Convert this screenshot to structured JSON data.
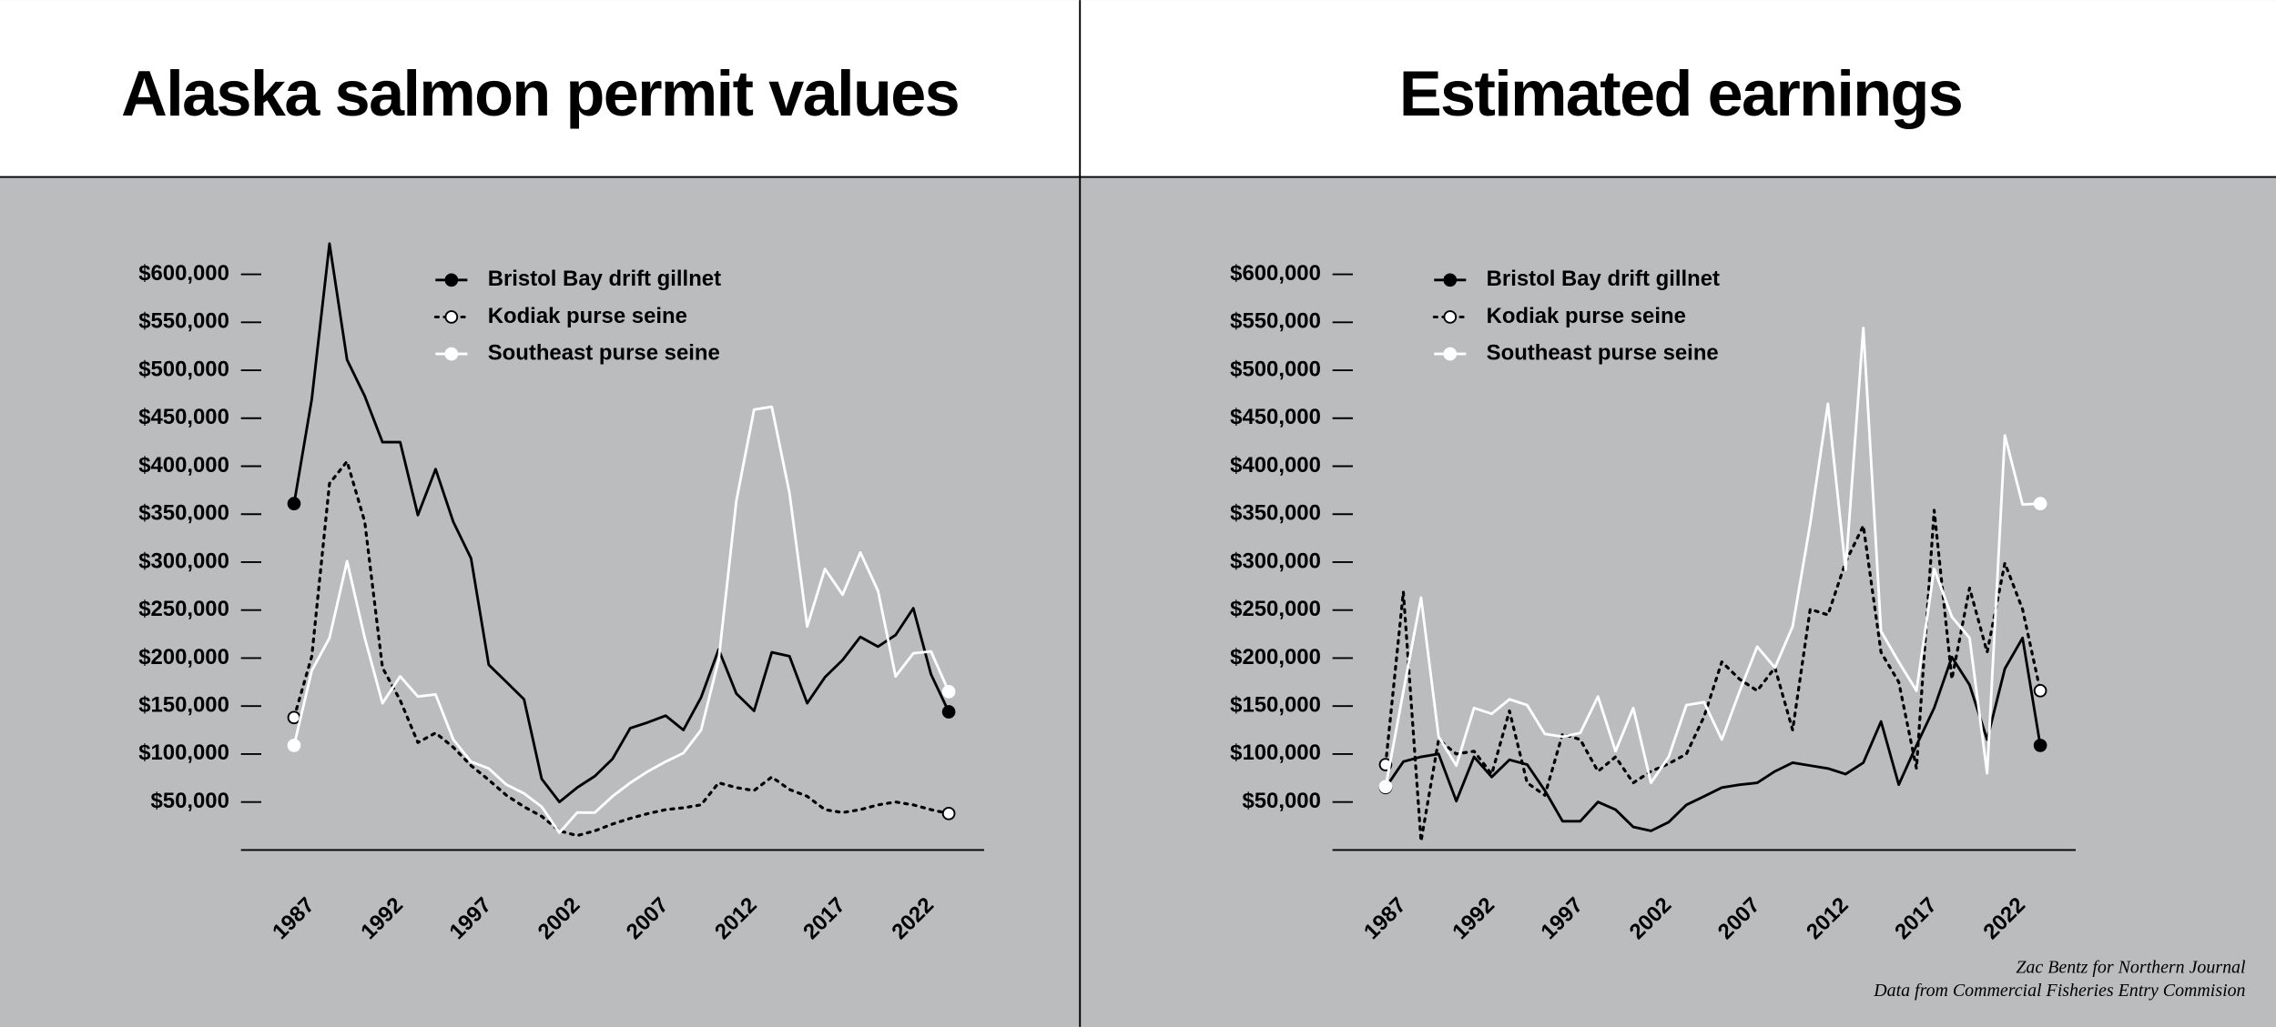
{
  "chart_data": [
    {
      "type": "line",
      "title": "Alaska salmon permit values",
      "x": [
        1987,
        1988,
        1989,
        1990,
        1991,
        1992,
        1993,
        1994,
        1995,
        1996,
        1997,
        1998,
        1999,
        2000,
        2001,
        2002,
        2003,
        2004,
        2005,
        2006,
        2007,
        2008,
        2009,
        2010,
        2011,
        2012,
        2013,
        2014,
        2015,
        2016,
        2017,
        2018,
        2019,
        2020,
        2021,
        2022,
        2023,
        2024
      ],
      "xlim": [
        1984,
        2026
      ],
      "xticks": [
        1987,
        1992,
        1997,
        2002,
        2007,
        2012,
        2017,
        2022
      ],
      "ylim": [
        0,
        650000
      ],
      "yticks": [
        {
          "value": 50000,
          "label": "$50,000"
        },
        {
          "value": 100000,
          "label": "$100,000"
        },
        {
          "value": 150000,
          "label": "$150,000"
        },
        {
          "value": 200000,
          "label": "$200,000"
        },
        {
          "value": 250000,
          "label": "$250,000"
        },
        {
          "value": 300000,
          "label": "$300,000"
        },
        {
          "value": 350000,
          "label": "$350,000"
        },
        {
          "value": 400000,
          "label": "$400,000"
        },
        {
          "value": 450000,
          "label": "$450,000"
        },
        {
          "value": 500000,
          "label": "$500,000"
        },
        {
          "value": 550000,
          "label": "$550,000"
        },
        {
          "value": 600000,
          "label": "$600,000"
        }
      ],
      "legend": "top-left",
      "series": [
        {
          "name": "Bristol Bay drift gillnet",
          "color": "#000000",
          "line_style": "solid",
          "marker_fill": "#000000",
          "values": [
            361000,
            470000,
            632000,
            511000,
            473000,
            425000,
            425000,
            349000,
            397000,
            342000,
            304000,
            193000,
            175000,
            157000,
            74000,
            50000,
            65000,
            77000,
            95000,
            127000,
            133000,
            140000,
            125000,
            159000,
            209000,
            163000,
            145000,
            206000,
            202000,
            153000,
            180000,
            198000,
            222000,
            212000,
            224000,
            252000,
            183000,
            144000
          ]
        },
        {
          "name": "Kodiak purse seine",
          "color": "#000000",
          "line_style": "dotted",
          "marker_fill": "#ffffff",
          "values": [
            138000,
            202000,
            382000,
            405000,
            342000,
            190000,
            156000,
            112000,
            122000,
            107000,
            88000,
            73000,
            57000,
            45000,
            35000,
            20000,
            15000,
            20000,
            27000,
            33000,
            38000,
            42000,
            44000,
            47000,
            70000,
            65000,
            62000,
            76000,
            63000,
            56000,
            42000,
            39000,
            42000,
            47000,
            50000,
            47000,
            42000,
            38000
          ]
        },
        {
          "name": "Southeast purse seine",
          "color": "#ffffff",
          "line_style": "solid",
          "marker_fill": "#ffffff",
          "values": [
            109000,
            187000,
            221000,
            301000,
            221000,
            153000,
            181000,
            160000,
            162000,
            115000,
            92000,
            85000,
            68000,
            59000,
            45000,
            18000,
            39000,
            39000,
            56000,
            70000,
            82000,
            92000,
            101000,
            125000,
            198000,
            364000,
            459000,
            462000,
            372000,
            233000,
            293000,
            266000,
            310000,
            270000,
            181000,
            205000,
            207000,
            165000
          ]
        }
      ]
    },
    {
      "type": "line",
      "title": "Estimated earnings",
      "x": [
        1987,
        1988,
        1989,
        1990,
        1991,
        1992,
        1993,
        1994,
        1995,
        1996,
        1997,
        1998,
        1999,
        2000,
        2001,
        2002,
        2003,
        2004,
        2005,
        2006,
        2007,
        2008,
        2009,
        2010,
        2011,
        2012,
        2013,
        2014,
        2015,
        2016,
        2017,
        2018,
        2019,
        2020,
        2021,
        2022,
        2023,
        2024
      ],
      "xlim": [
        1984,
        2026
      ],
      "xticks": [
        1987,
        1992,
        1997,
        2002,
        2007,
        2012,
        2017,
        2022
      ],
      "ylim": [
        0,
        650000
      ],
      "yticks": [
        {
          "value": 50000,
          "label": "$50,000"
        },
        {
          "value": 100000,
          "label": "$100,000"
        },
        {
          "value": 150000,
          "label": "$150,000"
        },
        {
          "value": 200000,
          "label": "$200,000"
        },
        {
          "value": 250000,
          "label": "$250,000"
        },
        {
          "value": 300000,
          "label": "$300,000"
        },
        {
          "value": 350000,
          "label": "$350,000"
        },
        {
          "value": 400000,
          "label": "$400,000"
        },
        {
          "value": 450000,
          "label": "$450,000"
        },
        {
          "value": 500000,
          "label": "$500,000"
        },
        {
          "value": 550000,
          "label": "$550,000"
        },
        {
          "value": 600000,
          "label": "$600,000"
        }
      ],
      "legend": "top-left",
      "series": [
        {
          "name": "Bristol Bay drift gillnet",
          "color": "#000000",
          "line_style": "solid",
          "marker_fill": "#000000",
          "values": [
            65000,
            92000,
            97000,
            100000,
            51000,
            97000,
            76000,
            94000,
            89000,
            62000,
            30000,
            30000,
            50000,
            42000,
            24000,
            20000,
            29000,
            47000,
            56000,
            65000,
            68000,
            70000,
            82000,
            91000,
            88000,
            85000,
            79000,
            91000,
            134000,
            68000,
            109000,
            148000,
            201000,
            172000,
            115000,
            189000,
            221000,
            109000
          ]
        },
        {
          "name": "Kodiak purse seine",
          "color": "#000000",
          "line_style": "dotted",
          "marker_fill": "#ffffff",
          "values": [
            89000,
            269000,
            9000,
            115000,
            100000,
            103000,
            79000,
            145000,
            70000,
            57000,
            121000,
            115000,
            82000,
            97000,
            70000,
            82000,
            90000,
            100000,
            139000,
            196000,
            178000,
            166000,
            190000,
            125000,
            251000,
            245000,
            300000,
            338000,
            206000,
            175000,
            85000,
            354000,
            178000,
            273000,
            206000,
            299000,
            251000,
            166000
          ]
        },
        {
          "name": "Southeast purse seine",
          "color": "#ffffff",
          "line_style": "solid",
          "marker_fill": "#ffffff",
          "values": [
            66000,
            165000,
            263000,
            118000,
            88000,
            148000,
            142000,
            157000,
            151000,
            121000,
            118000,
            122000,
            160000,
            103000,
            148000,
            70000,
            97000,
            151000,
            154000,
            115000,
            165000,
            212000,
            190000,
            233000,
            340000,
            465000,
            292000,
            544000,
            228000,
            196000,
            166000,
            293000,
            243000,
            221000,
            80000,
            432000,
            360000,
            361000
          ]
        }
      ]
    }
  ],
  "credits": [
    "Zac Bentz for Northern Journal",
    "Data from Commercial Fisheries Entry Commision"
  ]
}
